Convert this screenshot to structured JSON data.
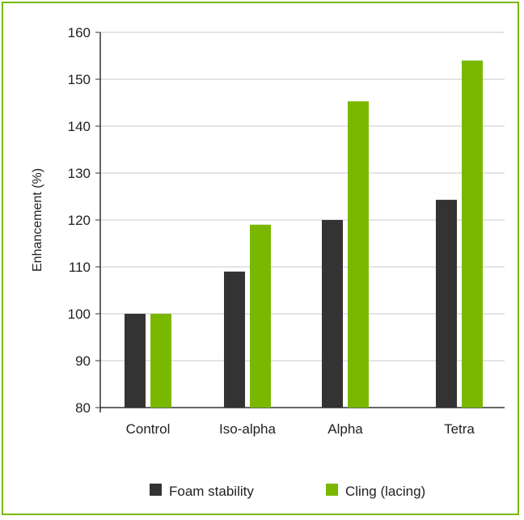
{
  "chart_data": {
    "type": "bar",
    "title": "",
    "xlabel": "",
    "ylabel": "Enhancement (%)",
    "ylim": [
      80,
      160
    ],
    "yticks": [
      80,
      90,
      100,
      110,
      120,
      130,
      140,
      150,
      160
    ],
    "categories": [
      "Control",
      "Iso-alpha",
      "Alpha",
      "Tetra"
    ],
    "series": [
      {
        "name": "Foam stability",
        "values": [
          100,
          109,
          120,
          124.3
        ],
        "color": "#333333"
      },
      {
        "name": "Cling (lacing)",
        "values": [
          100,
          119,
          145.3,
          154
        ],
        "color": "#7ab800"
      }
    ],
    "grid": true,
    "legend_position": "bottom"
  },
  "colors": {
    "frame": "#7ab800",
    "grid": "#c8c8c8",
    "axis": "#333333"
  }
}
